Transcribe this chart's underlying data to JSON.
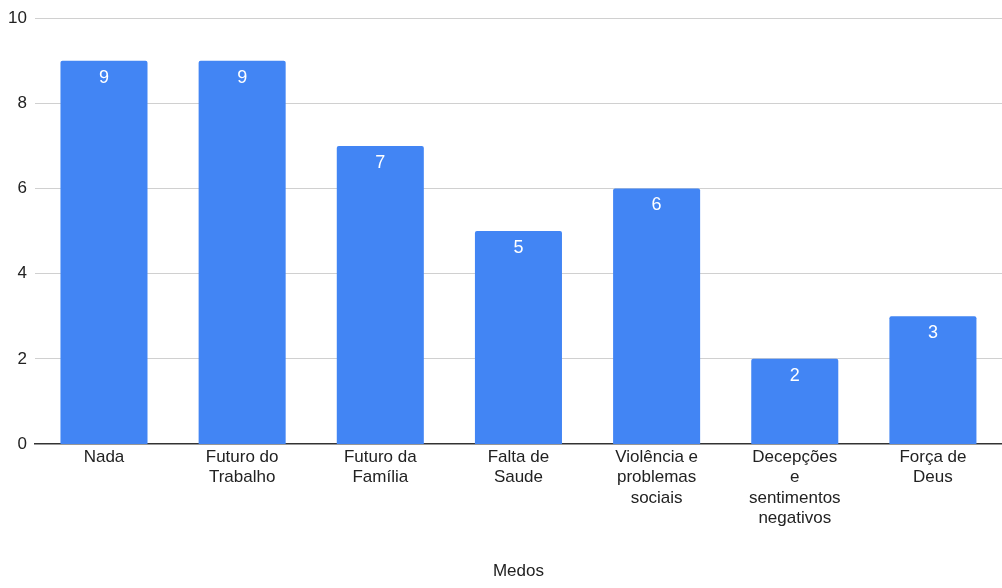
{
  "chart_data": {
    "type": "bar",
    "xlabel": "Medos",
    "categories": [
      "Nada",
      "Futuro do Trabalho",
      "Futuro da Família",
      "Falta de Saude",
      "Violência e problemas sociais",
      "Decepções e sentimentos negativos",
      "Força de Deus"
    ],
    "values": [
      9,
      9,
      7,
      5,
      6,
      2,
      3
    ],
    "color": "#4285f4",
    "ylim": [
      0,
      10
    ],
    "yticks": [
      0,
      2,
      4,
      6,
      8,
      10
    ],
    "grid": "y",
    "data_labels": true,
    "legend": false
  }
}
